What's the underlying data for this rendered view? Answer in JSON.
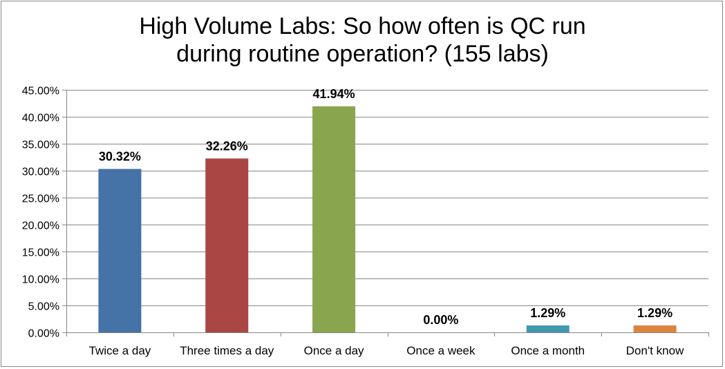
{
  "chart_data": {
    "type": "bar",
    "title": "High Volume Labs: So how often is QC run during routine operation? (155 labs)",
    "title_lines": [
      "High Volume Labs: So how often is QC run",
      "during routine operation? (155 labs)"
    ],
    "categories": [
      "Twice a day",
      "Three times a day",
      "Once a day",
      "Once a week",
      "Once a month",
      "Don't know"
    ],
    "values": [
      30.32,
      32.26,
      41.94,
      0.0,
      1.29,
      1.29
    ],
    "data_labels": [
      "30.32%",
      "32.26%",
      "41.94%",
      "0.00%",
      "1.29%",
      "1.29%"
    ],
    "colors": [
      "#4572A7",
      "#AA4643",
      "#89A54E",
      "#80699B",
      "#4198AF",
      "#DB843D"
    ],
    "ylim": [
      0,
      45
    ],
    "yticks": [
      0,
      5,
      10,
      15,
      20,
      25,
      30,
      35,
      40,
      45
    ],
    "ytick_labels": [
      "0.00%",
      "5.00%",
      "10.00%",
      "15.00%",
      "20.00%",
      "25.00%",
      "30.00%",
      "35.00%",
      "40.00%",
      "45.00%"
    ],
    "xlabel": "",
    "ylabel": "",
    "grid": true,
    "legend": "none"
  }
}
